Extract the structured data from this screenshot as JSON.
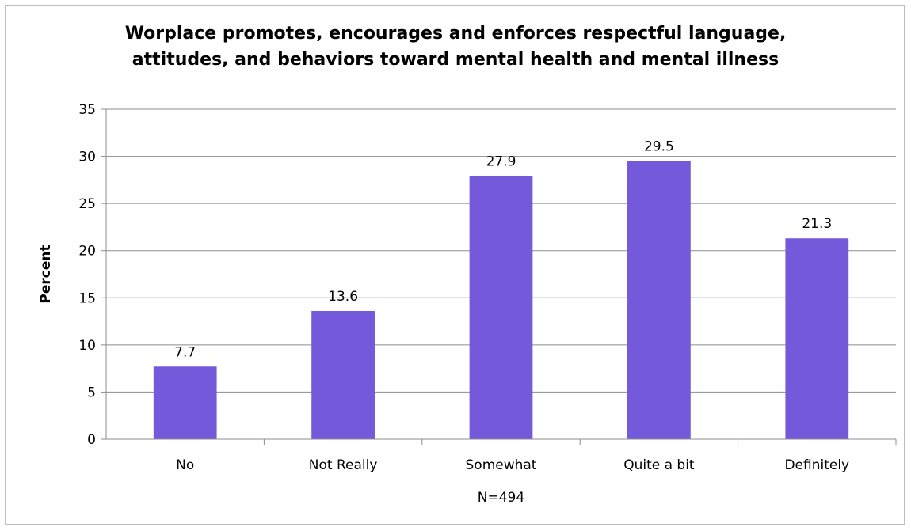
{
  "chart_data": {
    "type": "bar",
    "title_lines": [
      "Worplace promotes, encourages and enforces respectful language,",
      "attitudes, and behaviors toward mental health and mental illness"
    ],
    "categories": [
      "No",
      "Not Really",
      "Somewhat",
      "Quite a bit",
      "Definitely"
    ],
    "values": [
      7.7,
      13.6,
      27.9,
      29.5,
      21.3
    ],
    "value_labels": [
      "7.7",
      "13.6",
      "27.9",
      "29.5",
      "21.3"
    ],
    "xlabel": "N=494",
    "ylabel": "Percent",
    "ylim": [
      0,
      35
    ],
    "yticks": [
      "0",
      "5",
      "10",
      "15",
      "20",
      "25",
      "30",
      "35"
    ],
    "grid": true,
    "legend": "none",
    "bar_color": "#7559db",
    "grid_color": "#8c8c8c"
  }
}
